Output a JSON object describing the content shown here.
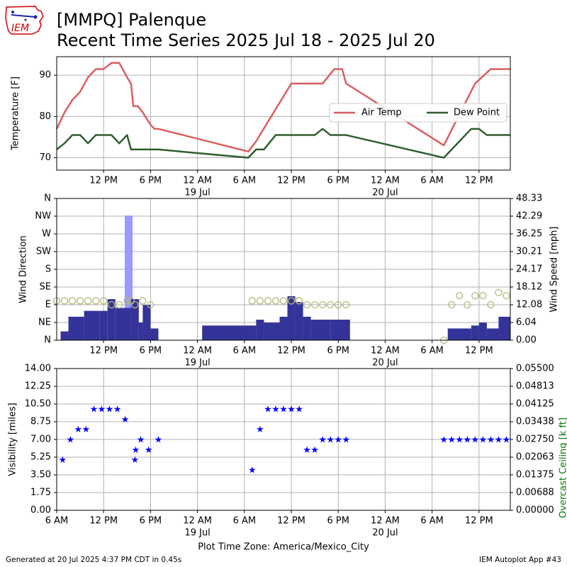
{
  "header": {
    "title_line1": "[MMPQ] Palenque",
    "title_line2": "Recent Time Series 2025 Jul 18 - 2025 Jul 20",
    "logo_text": "IEM"
  },
  "footer": {
    "generated": "Generated at 20 Jul 2025 4:37 PM CDT in 0.45s",
    "app": "IEM Autoplot App #43"
  },
  "colors": {
    "air_temp": "#d95f5f",
    "dew_point": "#2e5e2e",
    "wind_speed": "#333399",
    "wind_gust": "#9999ff",
    "wind_dir": "#b5b87a",
    "visibility": "#0000ff",
    "ceiling_label": "#008000",
    "grid": "#b0b0b0"
  },
  "chart_data": [
    {
      "type": "line",
      "id": "temperature",
      "ylabel": "Temperature [F]",
      "ylim": [
        67,
        94.5
      ],
      "yticks": [
        70,
        80,
        90
      ],
      "xlim_hours": [
        0,
        58
      ],
      "xticks": [
        {
          "hour": 6,
          "label": "12 PM"
        },
        {
          "hour": 12,
          "label": "6 PM"
        },
        {
          "hour": 18,
          "label": "12 AM",
          "sub": "19 Jul"
        },
        {
          "hour": 24,
          "label": "6 AM"
        },
        {
          "hour": 30,
          "label": "12 PM"
        },
        {
          "hour": 36,
          "label": "6 PM"
        },
        {
          "hour": 42,
          "label": "12 AM",
          "sub": "20 Jul"
        },
        {
          "hour": 48,
          "label": "6 AM"
        },
        {
          "hour": 54,
          "label": "12 PM"
        }
      ],
      "legend": {
        "placement": "right",
        "entries": [
          "Air Temp",
          "Dew Point"
        ]
      },
      "series": [
        {
          "name": "Air Temp",
          "x": [
            0,
            1,
            2,
            3,
            4,
            5,
            6,
            7,
            8,
            9,
            9.5,
            9.8,
            10.1,
            10.4,
            11,
            12,
            12.5,
            13,
            24.5,
            25.5,
            30,
            31,
            34,
            35.5,
            36.5,
            37,
            49.5,
            53.5,
            55.5,
            58
          ],
          "y": [
            77,
            81,
            84,
            86,
            89.5,
            91.5,
            91.5,
            93,
            93,
            89.5,
            88,
            82.5,
            82.5,
            82.5,
            81,
            78,
            77,
            77,
            71.5,
            74,
            88,
            88,
            88,
            91.5,
            91.5,
            88,
            73,
            88,
            91.5,
            91.5
          ]
        },
        {
          "name": "Dew Point",
          "x": [
            0,
            1,
            2,
            3,
            4,
            5,
            6,
            7,
            8,
            9,
            9.5,
            9.8,
            10.1,
            10.4,
            12,
            13,
            24.5,
            25.5,
            26.5,
            28,
            30,
            31,
            33,
            34,
            35,
            36.5,
            37,
            49.5,
            53,
            54,
            55,
            58
          ],
          "y": [
            72,
            73.5,
            75.5,
            75.5,
            73.5,
            75.5,
            75.5,
            75.5,
            73.5,
            75.5,
            72,
            72,
            72,
            72,
            72,
            72,
            70,
            72,
            72,
            75.5,
            75.5,
            75.5,
            75.5,
            77,
            75.5,
            75.5,
            75.5,
            70,
            77,
            77,
            75.5,
            75.5
          ]
        }
      ]
    },
    {
      "type": "bar",
      "id": "wind",
      "ylabel": "Wind Direction",
      "ylabel_right": "Wind Speed [mph]",
      "ylim_dir": [
        0,
        360
      ],
      "dir_ticks": [
        {
          "deg": 0,
          "label": "N"
        },
        {
          "deg": 45,
          "label": "NE"
        },
        {
          "deg": 90,
          "label": "E"
        },
        {
          "deg": 135,
          "label": "SE"
        },
        {
          "deg": 180,
          "label": "S"
        },
        {
          "deg": 225,
          "label": "SW"
        },
        {
          "deg": 270,
          "label": "W"
        },
        {
          "deg": 315,
          "label": "NW"
        },
        {
          "deg": 360,
          "label": "N"
        }
      ],
      "ylim_speed": [
        0,
        48.33
      ],
      "speed_ticks": [
        "0.00",
        "6.04",
        "12.08",
        "18.12",
        "24.17",
        "30.21",
        "36.25",
        "42.29",
        "48.33"
      ],
      "xlim_hours": [
        0,
        58
      ],
      "series": [
        {
          "name": "Wind Speed",
          "bars": [
            [
              0.5,
              1.5,
              3
            ],
            [
              1.5,
              3.5,
              8
            ],
            [
              3.5,
              5.5,
              10
            ],
            [
              5.5,
              6.5,
              10
            ],
            [
              6.5,
              7.5,
              14
            ],
            [
              7.5,
              9.5,
              11
            ],
            [
              9.5,
              10.5,
              14
            ],
            [
              10.5,
              11,
              6
            ],
            [
              11,
              12,
              12
            ],
            [
              12,
              13,
              4
            ],
            [
              18.6,
              25.5,
              5
            ],
            [
              25.5,
              26.5,
              7
            ],
            [
              26.5,
              28.5,
              6
            ],
            [
              28.5,
              29.5,
              8
            ],
            [
              29.5,
              30.5,
              15
            ],
            [
              30.5,
              31.5,
              13
            ],
            [
              31.5,
              32.5,
              8
            ],
            [
              32.5,
              35,
              7
            ],
            [
              35,
              37.5,
              7
            ],
            [
              50,
              53,
              4
            ],
            [
              53,
              54,
              5
            ],
            [
              54,
              55,
              6
            ],
            [
              55,
              56.5,
              4
            ],
            [
              56.5,
              58,
              8
            ]
          ]
        },
        {
          "name": "Wind Gust",
          "bars": [
            [
              8.7,
              9.7,
              42.5
            ]
          ]
        },
        {
          "name": "Wind Direction",
          "points": [
            [
              0,
              100
            ],
            [
              1,
              100
            ],
            [
              2,
              100
            ],
            [
              3,
              100
            ],
            [
              4,
              100
            ],
            [
              5,
              100
            ],
            [
              6,
              100
            ],
            [
              7,
              90
            ],
            [
              8,
              90
            ],
            [
              9,
              100
            ],
            [
              9.5,
              100
            ],
            [
              10,
              90
            ],
            [
              11,
              100
            ],
            [
              12,
              90
            ],
            [
              25,
              100
            ],
            [
              26,
              100
            ],
            [
              27,
              100
            ],
            [
              28,
              100
            ],
            [
              29,
              100
            ],
            [
              30,
              100
            ],
            [
              31,
              100
            ],
            [
              32,
              90
            ],
            [
              33,
              90
            ],
            [
              34,
              90
            ],
            [
              35,
              90
            ],
            [
              36,
              90
            ],
            [
              37,
              90
            ],
            [
              49.5,
              0
            ],
            [
              50.5,
              90
            ],
            [
              51.5,
              113
            ],
            [
              52.5,
              90
            ],
            [
              53.5,
              113
            ],
            [
              54.5,
              113
            ],
            [
              55.5,
              90
            ],
            [
              56.5,
              121
            ],
            [
              57.5,
              113
            ]
          ]
        }
      ]
    },
    {
      "type": "scatter",
      "id": "visibility",
      "ylabel": "Visibility [miles]",
      "ylabel_right": "Overcast Ceiling [k ft]",
      "ylim": [
        0,
        14
      ],
      "yticks": [
        "0.00",
        "1.75",
        "3.50",
        "5.25",
        "7.00",
        "8.75",
        "10.50",
        "12.25",
        "14.00"
      ],
      "ylim_right": [
        0,
        0.055
      ],
      "yticks_right": [
        "0.00000",
        "0.00688",
        "0.01375",
        "0.02063",
        "0.02750",
        "0.03438",
        "0.04125",
        "0.04813",
        "0.05500"
      ],
      "xlim_hours": [
        0,
        58
      ],
      "xticks": [
        {
          "hour": 0,
          "label": "6 AM"
        },
        {
          "hour": 6,
          "label": "12 PM"
        },
        {
          "hour": 12,
          "label": "6 PM"
        },
        {
          "hour": 18,
          "label": "12 AM",
          "sub": "19 Jul"
        },
        {
          "hour": 24,
          "label": "6 AM"
        },
        {
          "hour": 30,
          "label": "12 PM"
        },
        {
          "hour": 36,
          "label": "6 PM"
        },
        {
          "hour": 42,
          "label": "12 AM",
          "sub": "20 Jul"
        },
        {
          "hour": 48,
          "label": "6 AM"
        },
        {
          "hour": 54,
          "label": "12 PM"
        }
      ],
      "xlabel": "Plot Time Zone: America/Mexico_City",
      "series": [
        {
          "name": "Visibility",
          "x": [
            0.75,
            1.75,
            2.75,
            3.75,
            4.75,
            5.75,
            6.75,
            7.75,
            8.75,
            10,
            10.1,
            10.75,
            11.75,
            13,
            25,
            26,
            27,
            28,
            29,
            30,
            31,
            32,
            33,
            34,
            35,
            36,
            37,
            49.5,
            50.5,
            51.5,
            52.5,
            53.5,
            54.5,
            55.5,
            56.5,
            57.5
          ],
          "y": [
            5,
            7,
            8,
            8,
            10,
            10,
            10,
            10,
            9,
            5,
            6,
            7,
            6,
            7,
            4,
            8,
            10,
            10,
            10,
            10,
            10,
            6,
            6,
            7,
            7,
            7,
            7,
            7,
            7,
            7,
            7,
            7,
            7,
            7,
            7,
            7
          ]
        }
      ]
    }
  ]
}
